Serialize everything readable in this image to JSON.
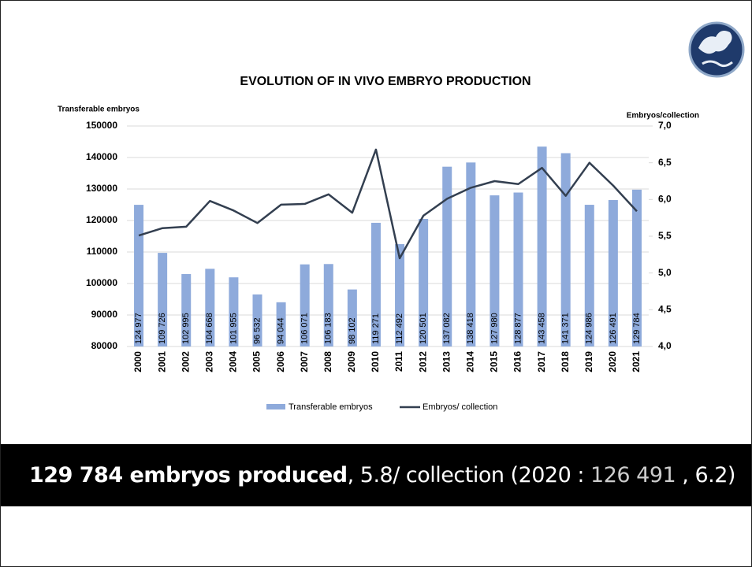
{
  "chart_data": {
    "type": "bar_line",
    "title": "EVOLUTION OF IN VIVO EMBRYO PRODUCTION",
    "y_label": "Transferable embryos",
    "y2_label": "Embryos/collection",
    "categories": [
      "2000",
      "2001",
      "2002",
      "2003",
      "2004",
      "2005",
      "2006",
      "2007",
      "2008",
      "2009",
      "2010",
      "2011",
      "2012",
      "2013",
      "2014",
      "2015",
      "2016",
      "2017",
      "2018",
      "2019",
      "2020",
      "2021"
    ],
    "series": [
      {
        "name": "Transferable embryos",
        "color": "#8eaadb",
        "values": [
          124977,
          109726,
          102995,
          104668,
          101955,
          96532,
          94044,
          106071,
          106183,
          98102,
          119271,
          112492,
          120501,
          137082,
          138418,
          127980,
          128877,
          143458,
          141371,
          124986,
          126491,
          129784
        ],
        "value_labels": [
          "124 977",
          "109 726",
          "102 995",
          "104 668",
          "101 955",
          "96 532",
          "94 044",
          "106 071",
          "106 183",
          "98 102",
          "119 271",
          "112 492",
          "120 501",
          "137 082",
          "138 418",
          "127 980",
          "128 877",
          "143 458",
          "141 371",
          "124 986",
          "126 491",
          "129 784"
        ]
      },
      {
        "name": "Embryos/ collection",
        "color": "#333f50",
        "axis": "y2",
        "values": [
          5.51,
          5.61,
          5.63,
          5.98,
          5.85,
          5.68,
          5.93,
          5.94,
          6.07,
          5.82,
          6.68,
          5.2,
          5.78,
          6.01,
          6.16,
          6.25,
          6.21,
          6.43,
          6.05,
          6.5,
          6.19,
          5.84
        ]
      }
    ],
    "ylim": [
      80000,
      150000
    ],
    "yticks": [
      80000,
      90000,
      100000,
      110000,
      120000,
      130000,
      140000,
      150000
    ],
    "y2lim": [
      4,
      7
    ],
    "y2ticks": [
      {
        "value": 4,
        "label": "4,0"
      },
      {
        "value": 4.5,
        "label": "4,5"
      },
      {
        "value": 5,
        "label": "5,0"
      },
      {
        "value": 5.5,
        "label": "5,5"
      },
      {
        "value": 6,
        "label": "6,0"
      },
      {
        "value": 6.5,
        "label": "6,5"
      },
      {
        "value": 7,
        "label": "7,0"
      }
    ],
    "grid": true,
    "legend": "bottom"
  },
  "banner": {
    "bold": "129 784 embryos produced",
    "text": ", 5.8/ collection (2020 : ",
    "value": "126 491",
    "tail": " , 6.2)"
  }
}
